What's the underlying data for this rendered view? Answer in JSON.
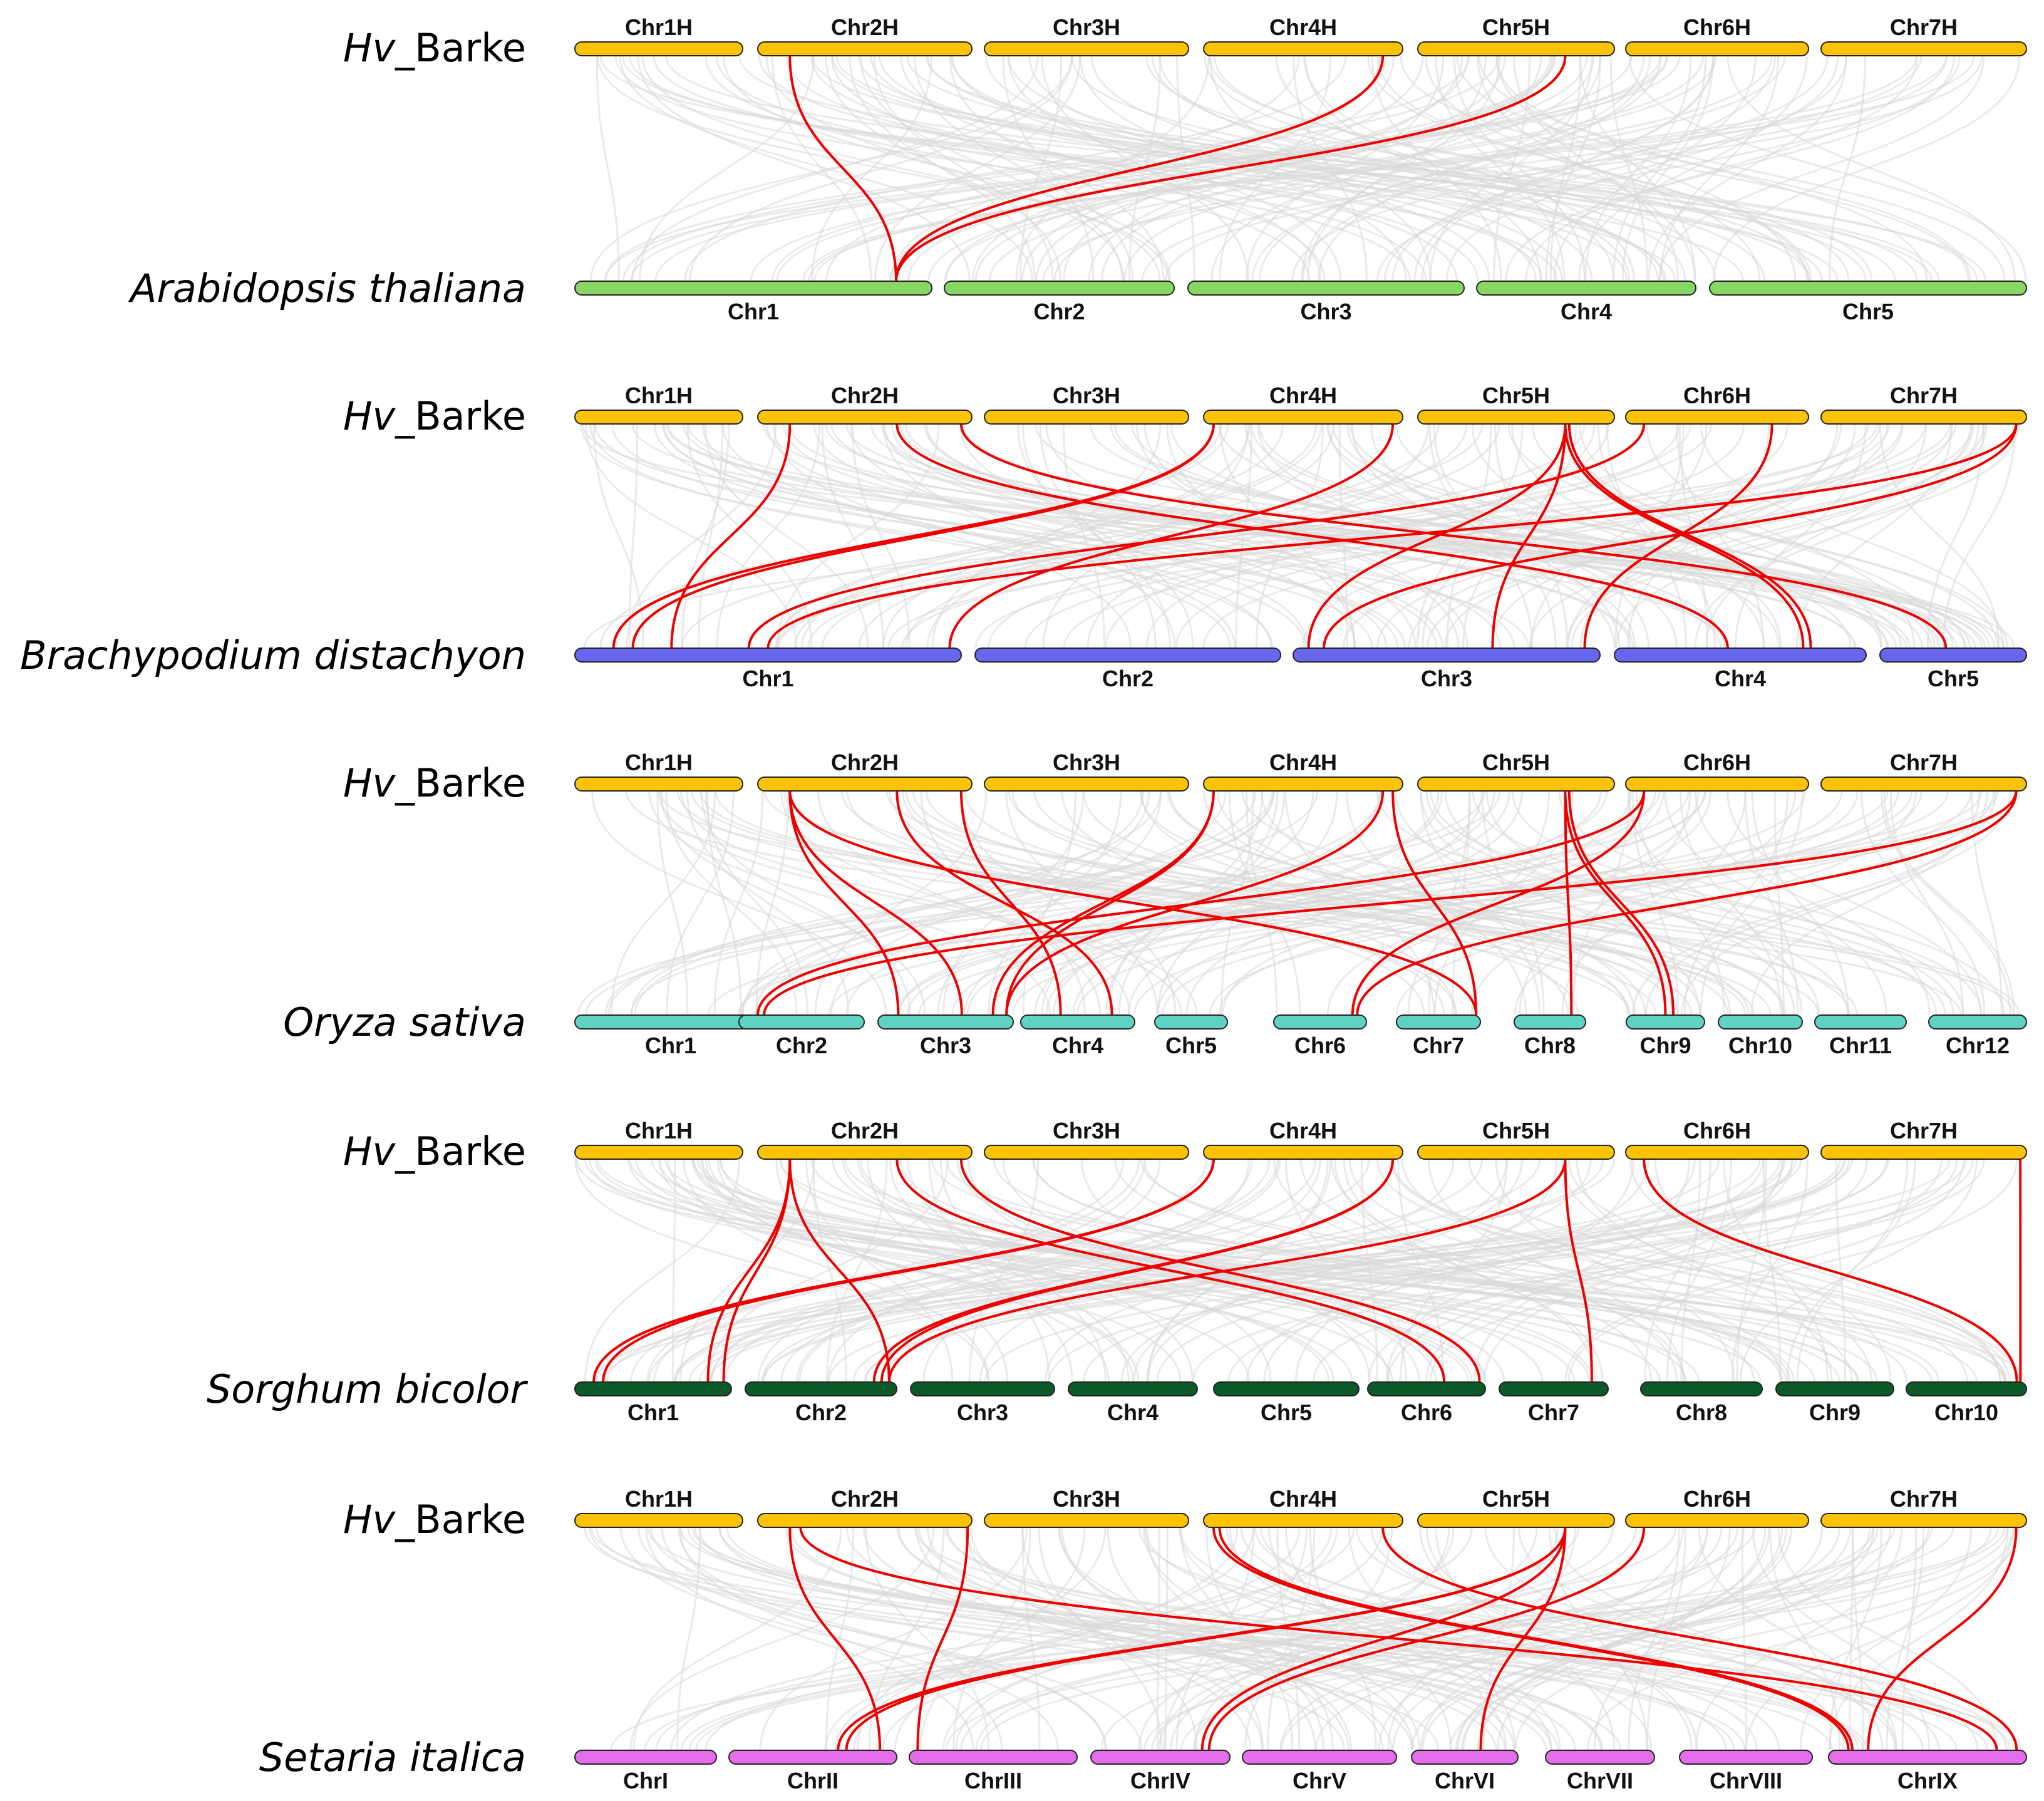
{
  "reference": {
    "name_italic": "Hv",
    "name_rest": "_Barke",
    "color": "#fbc304",
    "chromosomes": [
      "Chr1H",
      "Chr2H",
      "Chr3H",
      "Chr4H",
      "Chr5H",
      "Chr6H",
      "Chr7H"
    ]
  },
  "panels": [
    {
      "species": "Arabidopsis thaliana",
      "color": "#86d764",
      "chromosomes": [
        "Chr1",
        "Chr2",
        "Chr3",
        "Chr4",
        "Chr5"
      ],
      "links": [
        [
          2,
          0.15,
          1,
          0.9
        ],
        [
          4,
          0.9,
          1,
          0.9
        ],
        [
          5,
          0.75,
          1,
          0.9
        ]
      ]
    },
    {
      "species": "Brachypodium distachyon",
      "color": "#6666ee",
      "chromosomes": [
        "Chr1",
        "Chr2",
        "Chr3",
        "Chr4",
        "Chr5"
      ],
      "links": [
        [
          2,
          0.15,
          1,
          0.25
        ],
        [
          2,
          0.65,
          4,
          0.45
        ],
        [
          2,
          0.95,
          5,
          0.45
        ],
        [
          4,
          0.05,
          1,
          0.15
        ],
        [
          4,
          0.05,
          1,
          0.1
        ],
        [
          4,
          0.95,
          1,
          0.97
        ],
        [
          5,
          0.75,
          3,
          0.05
        ],
        [
          5,
          0.75,
          3,
          0.65
        ],
        [
          5,
          0.75,
          4,
          0.75
        ],
        [
          5,
          0.77,
          4,
          0.78
        ],
        [
          6,
          0.1,
          1,
          0.45
        ],
        [
          6,
          0.8,
          3,
          0.95
        ],
        [
          7,
          0.95,
          1,
          0.5
        ],
        [
          7,
          0.95,
          3,
          0.1
        ]
      ]
    },
    {
      "species": "Oryza sativa",
      "color": "#5fd3c3",
      "chromosomes": [
        "Chr1",
        "Chr2",
        "Chr3",
        "Chr4",
        "Chr5",
        "Chr6",
        "Chr7",
        "Chr8",
        "Chr9",
        "Chr10",
        "Chr11",
        "Chr12"
      ],
      "links": [
        [
          2,
          0.15,
          3,
          0.15
        ],
        [
          2,
          0.15,
          3,
          0.62
        ],
        [
          2,
          0.15,
          7,
          0.95
        ],
        [
          2,
          0.65,
          4,
          0.8
        ],
        [
          2,
          0.95,
          4,
          0.35
        ],
        [
          4,
          0.05,
          3,
          0.85
        ],
        [
          4,
          0.05,
          3,
          0.95
        ],
        [
          4,
          0.9,
          3,
          0.95
        ],
        [
          4,
          0.95,
          7,
          0.95
        ],
        [
          5,
          0.75,
          8,
          0.8
        ],
        [
          5,
          0.75,
          9,
          0.5
        ],
        [
          5,
          0.77,
          9,
          0.6
        ],
        [
          6,
          0.1,
          2,
          0.15
        ],
        [
          6,
          0.1,
          6,
          0.85
        ],
        [
          7,
          0.95,
          2,
          0.2
        ],
        [
          7,
          0.95,
          6,
          0.9
        ]
      ]
    },
    {
      "species": "Sorghum bicolor",
      "color": "#0c5a2a",
      "chromosomes": [
        "Chr1",
        "Chr2",
        "Chr3",
        "Chr4",
        "Chr5",
        "Chr6",
        "Chr7",
        "Chr8",
        "Chr9",
        "Chr10"
      ],
      "links": [
        [
          2,
          0.15,
          1,
          0.85
        ],
        [
          2,
          0.15,
          1,
          0.95
        ],
        [
          2,
          0.15,
          2,
          0.95
        ],
        [
          2,
          0.65,
          6,
          0.65
        ],
        [
          2,
          0.95,
          6,
          0.95
        ],
        [
          4,
          0.05,
          1,
          0.12
        ],
        [
          4,
          0.05,
          1,
          0.18
        ],
        [
          4,
          0.95,
          2,
          0.85
        ],
        [
          4,
          0.95,
          2,
          0.9
        ],
        [
          5,
          0.75,
          2,
          0.95
        ],
        [
          5,
          0.75,
          7,
          0.85
        ],
        [
          6,
          0.1,
          10,
          0.92
        ],
        [
          7,
          0.97,
          10,
          0.95
        ]
      ]
    },
    {
      "species": "Setaria italica",
      "color": "#e46eea",
      "chromosomes": [
        "ChrI",
        "ChrII",
        "ChrIII",
        "ChrIV",
        "ChrV",
        "ChrVI",
        "ChrVII",
        "ChrVIII",
        "ChrIX"
      ],
      "links": [
        [
          2,
          0.15,
          2,
          0.9
        ],
        [
          2,
          0.2,
          9,
          0.85
        ],
        [
          2,
          0.98,
          3,
          0.05
        ],
        [
          4,
          0.05,
          9,
          0.1
        ],
        [
          4,
          0.08,
          9,
          0.12
        ],
        [
          4,
          0.9,
          9,
          0.95
        ],
        [
          5,
          0.75,
          2,
          0.65
        ],
        [
          5,
          0.75,
          2,
          0.7
        ],
        [
          5,
          0.75,
          4,
          0.8
        ],
        [
          5,
          0.75,
          6,
          0.65
        ],
        [
          6,
          0.1,
          4,
          0.85
        ],
        [
          7,
          0.95,
          9,
          0.2
        ]
      ]
    }
  ]
}
